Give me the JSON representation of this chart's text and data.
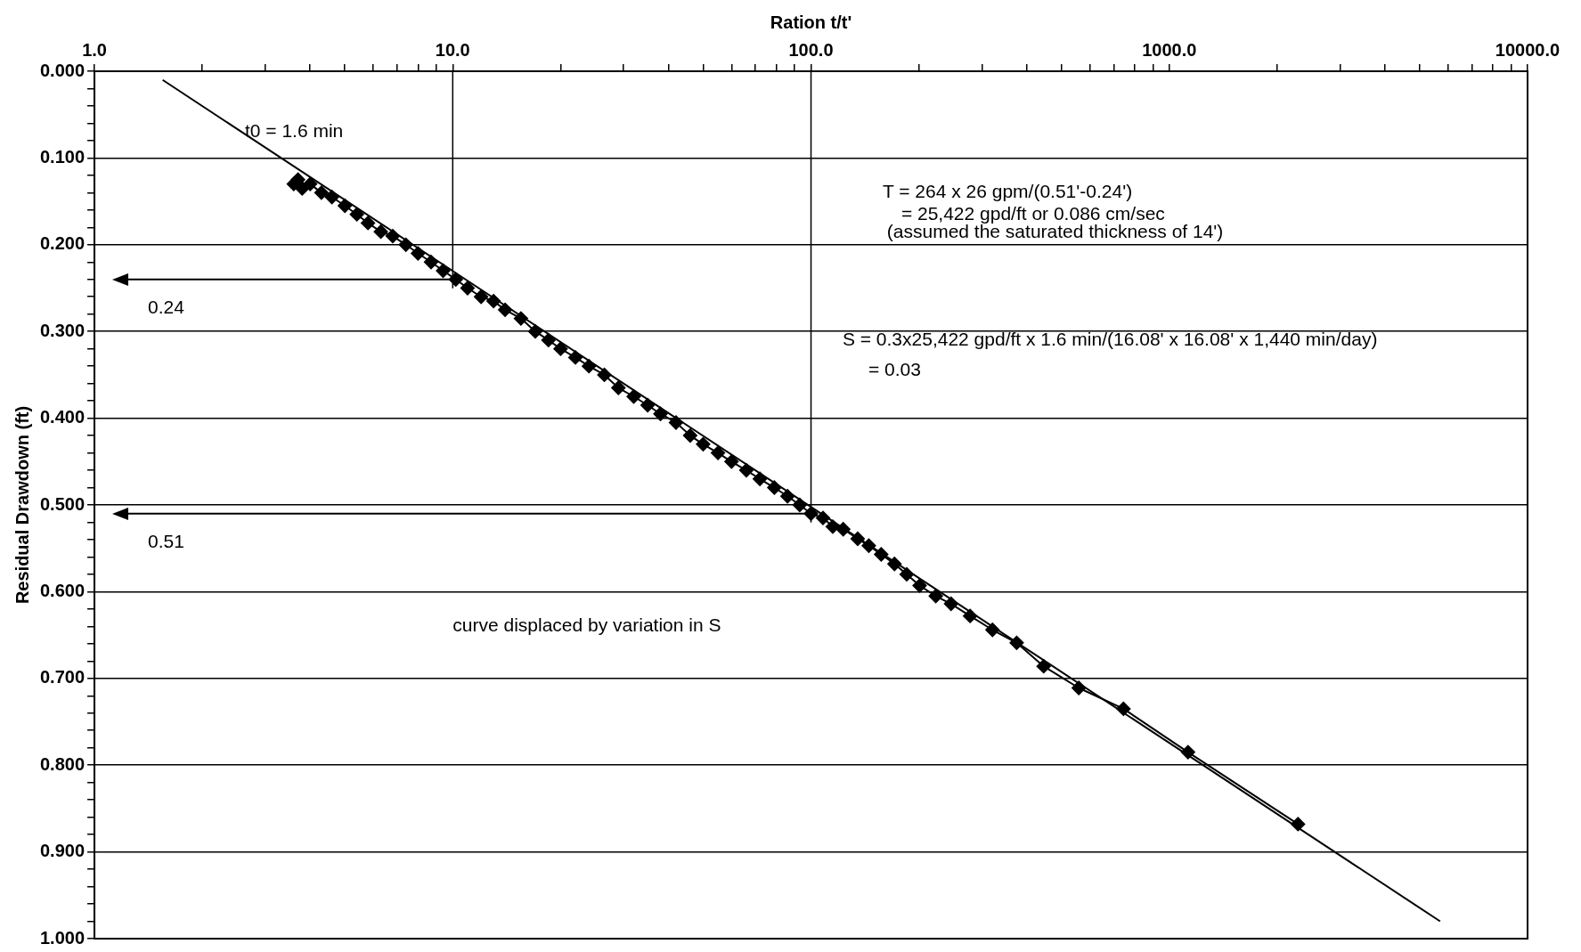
{
  "chart_data": {
    "type": "line",
    "xlabel": "Ration t/t'",
    "ylabel": "Residual Drawdown (ft)",
    "log": "x",
    "xlim": [
      1,
      10000
    ],
    "ylim": [
      1,
      0
    ],
    "xticks": [
      {
        "value": 1,
        "label": "1.0"
      },
      {
        "value": 2,
        "label": null
      },
      {
        "value": 3,
        "label": null
      },
      {
        "value": 4,
        "label": null
      },
      {
        "value": 5,
        "label": null
      },
      {
        "value": 6,
        "label": null
      },
      {
        "value": 7,
        "label": null
      },
      {
        "value": 8,
        "label": null
      },
      {
        "value": 9,
        "label": null
      },
      {
        "value": 10,
        "label": "10.0"
      },
      {
        "value": 20,
        "label": null
      },
      {
        "value": 30,
        "label": null
      },
      {
        "value": 40,
        "label": null
      },
      {
        "value": 50,
        "label": null
      },
      {
        "value": 60,
        "label": null
      },
      {
        "value": 70,
        "label": null
      },
      {
        "value": 80,
        "label": null
      },
      {
        "value": 90,
        "label": null
      },
      {
        "value": 100,
        "label": "100.0"
      },
      {
        "value": 200,
        "label": null
      },
      {
        "value": 300,
        "label": null
      },
      {
        "value": 400,
        "label": null
      },
      {
        "value": 500,
        "label": null
      },
      {
        "value": 600,
        "label": null
      },
      {
        "value": 700,
        "label": null
      },
      {
        "value": 800,
        "label": null
      },
      {
        "value": 900,
        "label": null
      },
      {
        "value": 1000,
        "label": "1000.0"
      },
      {
        "value": 2000,
        "label": null
      },
      {
        "value": 3000,
        "label": null
      },
      {
        "value": 4000,
        "label": null
      },
      {
        "value": 5000,
        "label": null
      },
      {
        "value": 6000,
        "label": null
      },
      {
        "value": 7000,
        "label": null
      },
      {
        "value": 8000,
        "label": null
      },
      {
        "value": 9000,
        "label": null
      },
      {
        "value": 10000,
        "label": "10000.0"
      }
    ],
    "yticks": [
      {
        "value": 0,
        "label": "0.000"
      },
      {
        "value": 0.02,
        "label": null
      },
      {
        "value": 0.04,
        "label": null
      },
      {
        "value": 0.06,
        "label": null
      },
      {
        "value": 0.08,
        "label": null
      },
      {
        "value": 0.1,
        "label": "0.100"
      },
      {
        "value": 0.12,
        "label": null
      },
      {
        "value": 0.14,
        "label": null
      },
      {
        "value": 0.16,
        "label": null
      },
      {
        "value": 0.18,
        "label": null
      },
      {
        "value": 0.2,
        "label": "0.200"
      },
      {
        "value": 0.22,
        "label": null
      },
      {
        "value": 0.24,
        "label": null
      },
      {
        "value": 0.26,
        "label": null
      },
      {
        "value": 0.28,
        "label": null
      },
      {
        "value": 0.3,
        "label": "0.300"
      },
      {
        "value": 0.32,
        "label": null
      },
      {
        "value": 0.34,
        "label": null
      },
      {
        "value": 0.36,
        "label": null
      },
      {
        "value": 0.38,
        "label": null
      },
      {
        "value": 0.4,
        "label": "0.400"
      },
      {
        "value": 0.42,
        "label": null
      },
      {
        "value": 0.44,
        "label": null
      },
      {
        "value": 0.46,
        "label": null
      },
      {
        "value": 0.48,
        "label": null
      },
      {
        "value": 0.5,
        "label": "0.500"
      },
      {
        "value": 0.52,
        "label": null
      },
      {
        "value": 0.54,
        "label": null
      },
      {
        "value": 0.56,
        "label": null
      },
      {
        "value": 0.58,
        "label": null
      },
      {
        "value": 0.6,
        "label": "0.600"
      },
      {
        "value": 0.62,
        "label": null
      },
      {
        "value": 0.64,
        "label": null
      },
      {
        "value": 0.66,
        "label": null
      },
      {
        "value": 0.68,
        "label": null
      },
      {
        "value": 0.7,
        "label": "0.700"
      },
      {
        "value": 0.72,
        "label": null
      },
      {
        "value": 0.74,
        "label": null
      },
      {
        "value": 0.76,
        "label": null
      },
      {
        "value": 0.78,
        "label": null
      },
      {
        "value": 0.8,
        "label": "0.800"
      },
      {
        "value": 0.82,
        "label": null
      },
      {
        "value": 0.84,
        "label": null
      },
      {
        "value": 0.86,
        "label": null
      },
      {
        "value": 0.88,
        "label": null
      },
      {
        "value": 0.9,
        "label": "0.900"
      },
      {
        "value": 0.92,
        "label": null
      },
      {
        "value": 0.94,
        "label": null
      },
      {
        "value": 0.96,
        "label": null
      },
      {
        "value": 0.98,
        "label": null
      },
      {
        "value": 1,
        "label": "1.000"
      }
    ],
    "grid": "y",
    "legend": false,
    "marker": "diamond",
    "series": [
      {
        "color": "#000000",
        "x": [
          3.6,
          3.7,
          3.8,
          4.0,
          4.3,
          4.6,
          5.0,
          5.4,
          5.8,
          6.3,
          6.8,
          7.4,
          8.0,
          8.7,
          9.4,
          10.2,
          11,
          12,
          13,
          14,
          15.5,
          17,
          18.5,
          20,
          22,
          24,
          26.5,
          29,
          32,
          35,
          38,
          42,
          46,
          50,
          55,
          60,
          66,
          72,
          79,
          86,
          93,
          100,
          108,
          115,
          123,
          135,
          145,
          157,
          171,
          185,
          201,
          223,
          246,
          278,
          321,
          375,
          446,
          559,
          745,
          1128,
          2287
        ],
        "values": [
          0.13,
          0.125,
          0.135,
          0.13,
          0.14,
          0.145,
          0.155,
          0.165,
          0.175,
          0.185,
          0.19,
          0.2,
          0.21,
          0.22,
          0.23,
          0.24,
          0.25,
          0.26,
          0.265,
          0.275,
          0.285,
          0.3,
          0.31,
          0.32,
          0.33,
          0.34,
          0.35,
          0.365,
          0.375,
          0.385,
          0.395,
          0.405,
          0.42,
          0.43,
          0.44,
          0.45,
          0.46,
          0.47,
          0.48,
          0.49,
          0.5,
          0.51,
          0.515,
          0.525,
          0.528,
          0.539,
          0.547,
          0.557,
          0.568,
          0.58,
          0.593,
          0.605,
          0.614,
          0.628,
          0.644,
          0.659,
          0.686,
          0.711,
          0.735,
          0.785,
          0.868
        ]
      },
      {
        "type": "line",
        "color": "#000000",
        "marker": "none",
        "x": [
          1.55,
          5700
        ],
        "values": [
          0.01,
          0.98
        ]
      }
    ],
    "ref_lines": [
      {
        "axis": "x",
        "value": 10
      },
      {
        "axis": "x",
        "value": 100
      },
      {
        "axis": "y",
        "value": 0.24,
        "label": "0.24"
      },
      {
        "axis": "y",
        "value": 0.51,
        "label": "0.51"
      }
    ],
    "annotations": [
      "t0 = 1.6 min",
      "T = 264 x 26 gpm/(0.51'-0.24')",
      "= 25,422 gpd/ft or 0.086 cm/sec",
      "(assumed the saturated thickness of 14')",
      "S = 0.3x25,422 gpd/ft x 1.6 min/(16.08' x 16.08' x 1,440 min/day)",
      "= 0.03",
      "curve displaced by variation in S"
    ]
  }
}
